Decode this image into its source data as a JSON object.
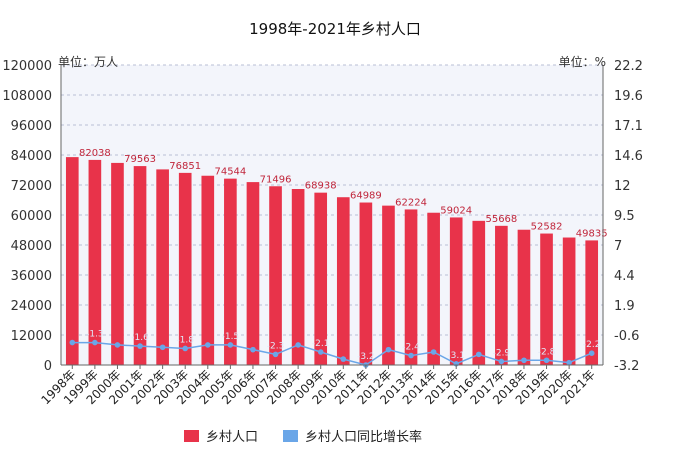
{
  "chart_data": {
    "type": "bar",
    "title": "1998年-2021年乡村人口",
    "left_unit_label": "单位：万人",
    "right_unit_label": "单位：%",
    "categories": [
      "1998年",
      "1999年",
      "2000年",
      "2001年",
      "2002年",
      "2003年",
      "2004年",
      "2005年",
      "2006年",
      "2007年",
      "2008年",
      "2009年",
      "2010年",
      "2011年",
      "2012年",
      "2013年",
      "2014年",
      "2015年",
      "2016年",
      "2017年",
      "2018年",
      "2019年",
      "2020年",
      "2021年"
    ],
    "series": [
      {
        "name": "乡村人口",
        "type": "bar",
        "axis": "left",
        "color": "#e8334a",
        "values": [
          83153,
          82038,
          80837,
          79563,
          78241,
          76851,
          75705,
          74544,
          73160,
          71496,
          70399,
          68938,
          67113,
          64989,
          63747,
          62224,
          60908,
          59024,
          57661,
          55668,
          54108,
          52582,
          50992,
          49835
        ],
        "labels": [
          "",
          "82038",
          "",
          "79563",
          "",
          "76851",
          "",
          "74544",
          "",
          "71496",
          "",
          "68938",
          "",
          "64989",
          "",
          "62224",
          "",
          "59024",
          "",
          "55668",
          "",
          "52582",
          "",
          "49835"
        ]
      },
      {
        "name": "乡村人口同比增长率",
        "type": "line",
        "axis": "right",
        "color": "#6aa6e8",
        "values": [
          -1.3,
          -1.3,
          -1.5,
          -1.6,
          -1.7,
          -1.8,
          -1.5,
          -1.5,
          -1.9,
          -2.3,
          -1.5,
          -2.1,
          -2.7,
          -3.2,
          -1.9,
          -2.4,
          -2.1,
          -3.1,
          -2.3,
          -2.9,
          -2.8,
          -2.8,
          -3.0,
          -2.2
        ],
        "labels": [
          "",
          "-1.3",
          "",
          "-1.6",
          "",
          "-1.8",
          "",
          "-1.5",
          "",
          "-2.3",
          "",
          "-2.1",
          "",
          "-3.2",
          "",
          "-2.4",
          "",
          "-3.1",
          "",
          "-2.9",
          "",
          "-2.8",
          "",
          "-2.2"
        ]
      }
    ],
    "left_axis": {
      "ylim": [
        0,
        120000
      ],
      "ticks": [
        "0",
        "12000",
        "24000",
        "36000",
        "48000",
        "60000",
        "72000",
        "84000",
        "96000",
        "108000",
        "120000"
      ]
    },
    "right_axis": {
      "ylim": [
        -3.2,
        22.2
      ],
      "ticks": [
        "-3.2",
        "-0.6",
        "1.9",
        "4.4",
        "7",
        "9.5",
        "12",
        "14.6",
        "17.1",
        "19.6",
        "22.2"
      ]
    },
    "grid": true,
    "legend": "bottom"
  }
}
